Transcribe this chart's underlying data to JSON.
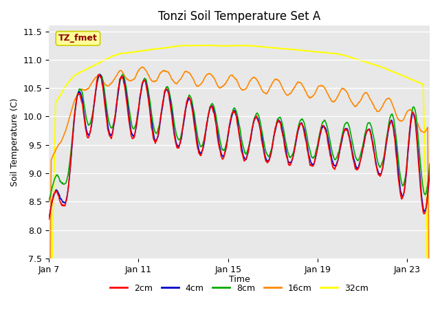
{
  "title": "Tonzi Soil Temperature Set A",
  "ylabel": "Soil Temperature (C)",
  "xlabel": "Time",
  "annotation_text": "TZ_fmet",
  "annotation_bg": "#ffff99",
  "annotation_border": "#cccc00",
  "annotation_fg": "#8b0000",
  "ylim": [
    7.5,
    11.6
  ],
  "yticks": [
    7.5,
    8.0,
    8.5,
    9.0,
    9.5,
    10.0,
    10.5,
    11.0,
    11.5
  ],
  "xtick_labels": [
    "Jan 7",
    "Jan 11",
    "Jan 15",
    "Jan 19",
    "Jan 23"
  ],
  "xtick_positions": [
    0,
    4,
    8,
    12,
    16
  ],
  "bg_color": "#e8e8e8",
  "line_colors": [
    "#ff0000",
    "#0000cc",
    "#00aa00",
    "#ff8800",
    "#ffff00"
  ],
  "line_labels": [
    "2cm",
    "4cm",
    "8cm",
    "16cm",
    "32cm"
  ],
  "line_widths": [
    1.2,
    1.2,
    1.2,
    1.2,
    1.5
  ],
  "n_points": 1700,
  "days": 17
}
